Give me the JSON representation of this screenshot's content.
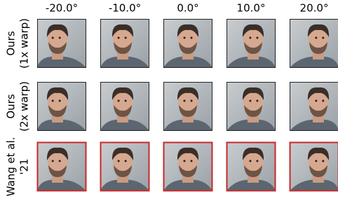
{
  "columns": [
    "-20.0°",
    "-10.0°",
    "0.0°",
    "10.0°",
    "20.0°"
  ],
  "rows": [
    {
      "label": [
        "Ours",
        "(1x warp)"
      ]
    },
    {
      "label": [
        "Ours",
        "(2x warp)"
      ]
    },
    {
      "label": [
        "Wang et al.",
        "'21"
      ]
    }
  ]
}
